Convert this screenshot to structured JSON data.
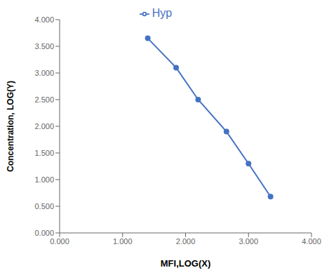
{
  "chart_data": {
    "type": "line",
    "x": [
      1.4,
      1.85,
      2.2,
      2.65,
      3.0,
      3.35
    ],
    "series": [
      {
        "name": "Hyp",
        "color": "#4472C4",
        "values": [
          3.65,
          3.1,
          2.5,
          1.9,
          1.3,
          0.68
        ],
        "marker": "circle"
      }
    ],
    "xlabel": "MFI,LOG(X)",
    "ylabel": "Concentration, LOG(Y)",
    "xlim": [
      0.0,
      4.0
    ],
    "ylim": [
      0.0,
      4.0
    ],
    "xticks": [
      {
        "value": 0.0,
        "label": "0.000"
      },
      {
        "value": 1.0,
        "label": "1.000"
      },
      {
        "value": 2.0,
        "label": "2.000"
      },
      {
        "value": 3.0,
        "label": "3.000"
      },
      {
        "value": 4.0,
        "label": "4.000"
      }
    ],
    "yticks": [
      {
        "value": 0.0,
        "label": "0.000"
      },
      {
        "value": 0.5,
        "label": "0.500"
      },
      {
        "value": 1.0,
        "label": "1.000"
      },
      {
        "value": 1.5,
        "label": "1.500"
      },
      {
        "value": 2.0,
        "label": "2.000"
      },
      {
        "value": 2.5,
        "label": "2.500"
      },
      {
        "value": 3.0,
        "label": "3.000"
      },
      {
        "value": 3.5,
        "label": "3.500"
      },
      {
        "value": 4.0,
        "label": "4.000"
      }
    ],
    "legend": "top",
    "grid": false
  }
}
